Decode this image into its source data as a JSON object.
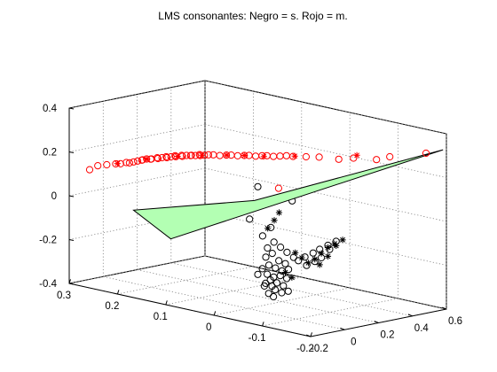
{
  "chart_data": {
    "type": "scatter3d",
    "title": "LMS consonantes: Negro = s. Rojo = m.",
    "xlim": [
      -0.2,
      0.3
    ],
    "ylim": [
      -0.2,
      0.6
    ],
    "zlim": [
      -0.4,
      0.4
    ],
    "x_ticks": [
      "-0.2",
      "-0.1",
      "0",
      "0.1",
      "0.2",
      "0.3"
    ],
    "y_ticks": [
      "-0.2",
      "0",
      "0.2",
      "0.4",
      "0.6"
    ],
    "z_ticks": [
      "-0.4",
      "-0.2",
      "0",
      "0.2",
      "0.4"
    ],
    "grid": true,
    "series": [
      {
        "color": "#ff0000",
        "markers": "circle",
        "points": [
          [
            0.3,
            -0.08,
            0.1
          ],
          [
            0.29,
            -0.06,
            0.12
          ],
          [
            0.275,
            -0.05,
            0.13
          ],
          [
            0.26,
            -0.04,
            0.14
          ],
          [
            0.25,
            -0.04,
            0.145
          ],
          [
            0.245,
            -0.02,
            0.15
          ],
          [
            0.235,
            -0.03,
            0.155
          ],
          [
            0.23,
            -0.02,
            0.16
          ],
          [
            0.225,
            -0.01,
            0.165
          ],
          [
            0.22,
            0.0,
            0.17
          ],
          [
            0.215,
            -0.01,
            0.175
          ],
          [
            0.21,
            0.0,
            0.18
          ],
          [
            0.205,
            0.01,
            0.18
          ],
          [
            0.2,
            0.0,
            0.185
          ],
          [
            0.195,
            0.02,
            0.19
          ],
          [
            0.19,
            0.01,
            0.19
          ],
          [
            0.185,
            0.02,
            0.195
          ],
          [
            0.18,
            0.03,
            0.2
          ],
          [
            0.175,
            0.02,
            0.2
          ],
          [
            0.17,
            0.03,
            0.205
          ],
          [
            0.165,
            0.04,
            0.21
          ],
          [
            0.16,
            0.03,
            0.21
          ],
          [
            0.155,
            0.05,
            0.215
          ],
          [
            0.15,
            0.04,
            0.215
          ],
          [
            0.145,
            0.05,
            0.22
          ],
          [
            0.14,
            0.06,
            0.22
          ],
          [
            0.135,
            0.05,
            0.225
          ],
          [
            0.13,
            0.06,
            0.225
          ],
          [
            0.125,
            0.07,
            0.23
          ],
          [
            0.12,
            0.06,
            0.23
          ],
          [
            0.115,
            0.07,
            0.232
          ],
          [
            0.11,
            0.08,
            0.235
          ],
          [
            0.1,
            0.08,
            0.24
          ],
          [
            0.09,
            0.09,
            0.24
          ],
          [
            0.08,
            0.1,
            0.245
          ],
          [
            0.07,
            0.1,
            0.25
          ],
          [
            0.06,
            0.11,
            0.25
          ],
          [
            0.05,
            0.12,
            0.255
          ],
          [
            0.04,
            0.12,
            0.26
          ],
          [
            0.03,
            0.13,
            0.26
          ],
          [
            0.02,
            0.14,
            0.265
          ],
          [
            0.01,
            0.14,
            0.27
          ],
          [
            0.0,
            0.15,
            0.27
          ],
          [
            -0.01,
            0.16,
            0.275
          ],
          [
            -0.02,
            0.17,
            0.28
          ],
          [
            -0.03,
            0.18,
            0.28
          ],
          [
            -0.05,
            0.2,
            0.285
          ],
          [
            -0.07,
            0.22,
            0.29
          ],
          [
            -0.1,
            0.25,
            0.29
          ],
          [
            -0.12,
            0.28,
            0.3
          ],
          [
            -0.15,
            0.33,
            0.3
          ],
          [
            -0.16,
            0.38,
            0.31
          ],
          [
            -0.2,
            0.48,
            0.33
          ],
          [
            0.0,
            0.18,
            0.12
          ]
        ]
      },
      {
        "color": "#ff0000",
        "markers": "star",
        "points": [
          [
            0.26,
            -0.03,
            0.14
          ],
          [
            0.21,
            0.0,
            0.18
          ],
          [
            0.16,
            0.04,
            0.21
          ],
          [
            0.12,
            0.07,
            0.23
          ],
          [
            0.08,
            0.1,
            0.245
          ],
          [
            0.05,
            0.12,
            0.255
          ],
          [
            0.02,
            0.15,
            0.26
          ],
          [
            -0.03,
            0.19,
            0.28
          ],
          [
            -0.12,
            0.3,
            0.31
          ]
        ]
      },
      {
        "color": "#000000",
        "markers": "circle",
        "points": [
          [
            0.05,
            0.2,
            0.1
          ],
          [
            0.0,
            0.26,
            0.05
          ],
          [
            0.06,
            0.18,
            -0.05
          ],
          [
            0.03,
            0.22,
            -0.08
          ],
          [
            0.04,
            0.2,
            -0.12
          ],
          [
            0.02,
            0.21,
            -0.14
          ],
          [
            0.01,
            0.22,
            -0.16
          ],
          [
            0.0,
            0.23,
            -0.18
          ],
          [
            -0.01,
            0.24,
            -0.2
          ],
          [
            0.02,
            0.2,
            -0.19
          ],
          [
            0.03,
            0.19,
            -0.21
          ],
          [
            0.01,
            0.21,
            -0.22
          ],
          [
            0.0,
            0.22,
            -0.23
          ],
          [
            -0.02,
            0.24,
            -0.21
          ],
          [
            0.02,
            0.18,
            -0.24
          ],
          [
            0.01,
            0.19,
            -0.25
          ],
          [
            0.0,
            0.2,
            -0.26
          ],
          [
            -0.01,
            0.21,
            -0.25
          ],
          [
            0.03,
            0.17,
            -0.26
          ],
          [
            0.02,
            0.17,
            -0.28
          ],
          [
            0.01,
            0.18,
            -0.29
          ],
          [
            0.0,
            0.19,
            -0.28
          ],
          [
            -0.01,
            0.2,
            -0.29
          ],
          [
            0.01,
            0.16,
            -0.3
          ],
          [
            0.0,
            0.17,
            -0.31
          ],
          [
            -0.01,
            0.18,
            -0.32
          ],
          [
            0.02,
            0.16,
            -0.32
          ],
          [
            0.01,
            0.17,
            -0.33
          ],
          [
            0.0,
            0.16,
            -0.34
          ],
          [
            -0.01,
            0.17,
            -0.35
          ],
          [
            0.01,
            0.15,
            -0.36
          ],
          [
            0.0,
            0.15,
            -0.37
          ],
          [
            -0.02,
            0.18,
            -0.34
          ],
          [
            0.03,
            0.2,
            -0.17
          ],
          [
            -0.03,
            0.25,
            -0.19
          ],
          [
            -0.04,
            0.27,
            -0.17
          ],
          [
            -0.05,
            0.28,
            -0.15
          ],
          [
            -0.06,
            0.3,
            -0.13
          ],
          [
            -0.07,
            0.32,
            -0.11
          ],
          [
            -0.06,
            0.31,
            -0.15
          ],
          [
            -0.05,
            0.29,
            -0.19
          ],
          [
            -0.04,
            0.28,
            -0.21
          ],
          [
            -0.03,
            0.26,
            -0.23
          ],
          [
            0.05,
            0.2,
            -0.3
          ],
          [
            0.04,
            0.21,
            -0.35
          ]
        ]
      },
      {
        "color": "#000000",
        "markers": "star",
        "points": [
          [
            0.02,
            0.24,
            -0.01
          ],
          [
            0.03,
            0.24,
            -0.05
          ],
          [
            0.04,
            0.23,
            -0.09
          ],
          [
            -0.01,
            0.25,
            -0.18
          ],
          [
            -0.02,
            0.26,
            -0.2
          ],
          [
            -0.03,
            0.27,
            -0.22
          ],
          [
            -0.04,
            0.28,
            -0.2
          ],
          [
            -0.05,
            0.29,
            -0.17
          ],
          [
            -0.06,
            0.3,
            -0.14
          ],
          [
            -0.07,
            0.31,
            -0.12
          ],
          [
            -0.08,
            0.33,
            -0.1
          ],
          [
            -0.07,
            0.32,
            -0.13
          ],
          [
            -0.06,
            0.3,
            -0.18
          ],
          [
            -0.05,
            0.28,
            -0.22
          ],
          [
            0.0,
            0.22,
            -0.27
          ],
          [
            -0.01,
            0.23,
            -0.29
          ]
        ]
      }
    ],
    "plane": {
      "color": "#b3ffb3",
      "vertices": [
        [
          0.23,
          -0.02,
          -0.06
        ],
        [
          0.16,
          0.0,
          -0.16
        ],
        [
          -0.2,
          0.58,
          0.33
        ],
        [
          0.05,
          0.18,
          0.04
        ]
      ]
    }
  }
}
